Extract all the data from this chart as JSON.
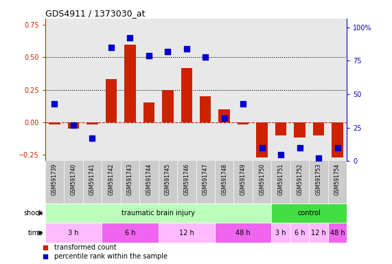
{
  "title": "GDS4911 / 1373030_at",
  "samples": [
    "GSM591739",
    "GSM591740",
    "GSM591741",
    "GSM591742",
    "GSM591743",
    "GSM591744",
    "GSM591745",
    "GSM591746",
    "GSM591747",
    "GSM591748",
    "GSM591749",
    "GSM591750",
    "GSM591751",
    "GSM591752",
    "GSM591753",
    "GSM591754"
  ],
  "bar_values": [
    -0.02,
    -0.05,
    -0.02,
    0.33,
    0.6,
    0.15,
    0.25,
    0.42,
    0.2,
    0.1,
    -0.02,
    -0.27,
    -0.1,
    -0.12,
    -0.1,
    -0.27
  ],
  "dot_pct": [
    43,
    27,
    17,
    85,
    92,
    79,
    82,
    84,
    78,
    32,
    43,
    10,
    5,
    10,
    2,
    10
  ],
  "bar_color": "#cc2200",
  "dot_color": "#0000cc",
  "ylim_left": [
    -0.3,
    0.8
  ],
  "ylim_right": [
    0,
    106.67
  ],
  "yticks_left": [
    -0.25,
    0.0,
    0.25,
    0.5,
    0.75
  ],
  "yticks_right": [
    0,
    25,
    50,
    75,
    100
  ],
  "ytick_labels_right": [
    "0",
    "25",
    "50",
    "75",
    "100%"
  ],
  "shock_groups": [
    {
      "label": "traumatic brain injury",
      "start": 0,
      "end": 12,
      "color": "#bbffbb"
    },
    {
      "label": "control",
      "start": 12,
      "end": 16,
      "color": "#44dd44"
    }
  ],
  "time_groups": [
    {
      "label": "3 h",
      "start": 0,
      "end": 3,
      "color": "#ffbbff"
    },
    {
      "label": "6 h",
      "start": 3,
      "end": 6,
      "color": "#ee66ee"
    },
    {
      "label": "12 h",
      "start": 6,
      "end": 9,
      "color": "#ffbbff"
    },
    {
      "label": "48 h",
      "start": 9,
      "end": 12,
      "color": "#ee66ee"
    },
    {
      "label": "3 h",
      "start": 12,
      "end": 13,
      "color": "#ffbbff"
    },
    {
      "label": "6 h",
      "start": 13,
      "end": 14,
      "color": "#ffbbff"
    },
    {
      "label": "12 h",
      "start": 14,
      "end": 15,
      "color": "#ffbbff"
    },
    {
      "label": "48 h",
      "start": 15,
      "end": 16,
      "color": "#ee66ee"
    }
  ],
  "bar_width": 0.6,
  "dot_size": 28,
  "legend_bar_label": "transformed count",
  "legend_dot_label": "percentile rank within the sample",
  "shock_label": "shock",
  "time_label": "time",
  "tick_color_left": "#cc2200",
  "tick_color_right": "#0000cc",
  "sample_area_color": "#cccccc",
  "chart_bg_color": "#e8e8e8"
}
